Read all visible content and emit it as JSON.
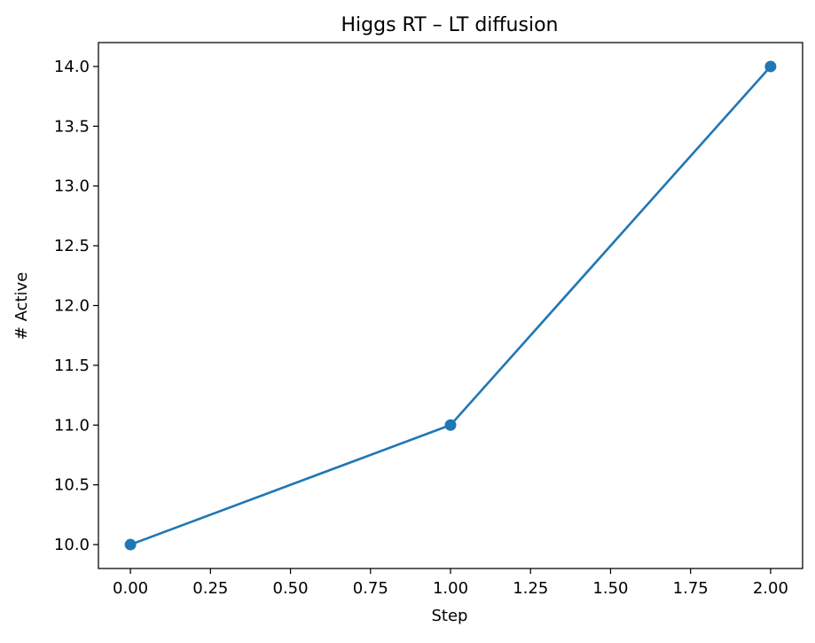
{
  "chart_data": {
    "type": "line",
    "title": "Higgs RT – LT diffusion",
    "xlabel": "Step",
    "ylabel": "# Active",
    "x": [
      0,
      1,
      2
    ],
    "series": [
      {
        "values": [
          10,
          11,
          14
        ],
        "color": "#1f77b4",
        "marker": "circle"
      }
    ],
    "xlim": [
      -0.1,
      2.1
    ],
    "ylim": [
      9.8,
      14.2
    ],
    "xticks": [
      0.0,
      0.25,
      0.5,
      0.75,
      1.0,
      1.25,
      1.5,
      1.75,
      2.0
    ],
    "xtick_labels": [
      "0.00",
      "0.25",
      "0.50",
      "0.75",
      "1.00",
      "1.25",
      "1.50",
      "1.75",
      "2.00"
    ],
    "yticks": [
      10.0,
      10.5,
      11.0,
      11.5,
      12.0,
      12.5,
      13.0,
      13.5,
      14.0
    ],
    "ytick_labels": [
      "10.0",
      "10.5",
      "11.0",
      "11.5",
      "12.0",
      "12.5",
      "13.0",
      "13.5",
      "14.0"
    ],
    "grid": false,
    "legend": false
  }
}
